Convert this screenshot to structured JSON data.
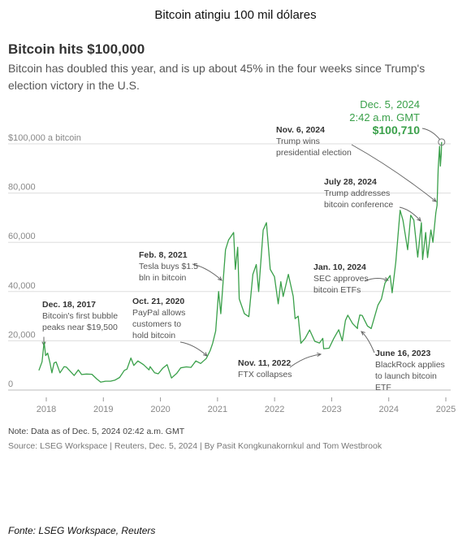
{
  "page_title": "Bitcoin atingiu 100 mil dólares",
  "footer": "Fonte: LSEG Workspace, Reuters",
  "chart_data": {
    "type": "line",
    "title": "Bitcoin hits $100,000",
    "subtitle": "Bitcoin has doubled this year, and is up about 45% in the four weeks since Trump's election victory in the U.S.",
    "note": "Note: Data as of Dec. 5, 2024 02:42 a.m. GMT",
    "source": "Source: LSEG Workspace | Reuters, Dec. 5, 2024 | By Pasit Kongkunakornkul and Tom Westbrook",
    "line_color": "#3aa04a",
    "x_ticks": [
      "2018",
      "2019",
      "2020",
      "2021",
      "2022",
      "2023",
      "2024",
      "2025"
    ],
    "y_ticks": [
      {
        "value": 0,
        "label": "0"
      },
      {
        "value": 20000,
        "label": "20,000"
      },
      {
        "value": 40000,
        "label": "40,000"
      },
      {
        "value": 60000,
        "label": "60,000"
      },
      {
        "value": 80000,
        "label": "80,000"
      },
      {
        "value": 100000,
        "label": "$100,000 a bitcoin"
      }
    ],
    "xlim": [
      "2017-11-01",
      "2025-02-01"
    ],
    "ylim": [
      0,
      100000
    ],
    "series": [
      {
        "points": [
          [
            "2017-11-15",
            8000
          ],
          [
            "2017-12-05",
            11500
          ],
          [
            "2017-12-18",
            19500
          ],
          [
            "2017-12-28",
            14000
          ],
          [
            "2018-01-10",
            15000
          ],
          [
            "2018-01-25",
            11000
          ],
          [
            "2018-02-06",
            7000
          ],
          [
            "2018-02-20",
            11000
          ],
          [
            "2018-03-05",
            11400
          ],
          [
            "2018-03-30",
            7000
          ],
          [
            "2018-04-25",
            9500
          ],
          [
            "2018-05-10",
            9300
          ],
          [
            "2018-06-28",
            5900
          ],
          [
            "2018-07-25",
            8200
          ],
          [
            "2018-08-15",
            6300
          ],
          [
            "2018-09-15",
            6500
          ],
          [
            "2018-10-20",
            6400
          ],
          [
            "2018-11-20",
            4500
          ],
          [
            "2018-12-15",
            3200
          ],
          [
            "2019-01-15",
            3600
          ],
          [
            "2019-02-15",
            3600
          ],
          [
            "2019-03-15",
            4000
          ],
          [
            "2019-04-15",
            5100
          ],
          [
            "2019-05-15",
            8000
          ],
          [
            "2019-06-01",
            8500
          ],
          [
            "2019-06-26",
            13000
          ],
          [
            "2019-07-15",
            10000
          ],
          [
            "2019-08-10",
            11800
          ],
          [
            "2019-09-15",
            10300
          ],
          [
            "2019-10-20",
            8200
          ],
          [
            "2019-10-27",
            9500
          ],
          [
            "2019-11-25",
            7000
          ],
          [
            "2019-12-18",
            6600
          ],
          [
            "2020-01-15",
            8800
          ],
          [
            "2020-02-13",
            10300
          ],
          [
            "2020-03-12",
            4900
          ],
          [
            "2020-04-15",
            6800
          ],
          [
            "2020-05-10",
            9000
          ],
          [
            "2020-06-15",
            9400
          ],
          [
            "2020-07-15",
            9200
          ],
          [
            "2020-08-15",
            11800
          ],
          [
            "2020-09-15",
            10800
          ],
          [
            "2020-10-21",
            12800
          ],
          [
            "2020-11-15",
            16000
          ],
          [
            "2020-12-01",
            19000
          ],
          [
            "2020-12-20",
            24000
          ],
          [
            "2021-01-08",
            40000
          ],
          [
            "2021-01-22",
            31000
          ],
          [
            "2021-02-08",
            46000
          ],
          [
            "2021-02-21",
            57000
          ],
          [
            "2021-03-13",
            61000
          ],
          [
            "2021-04-14",
            64000
          ],
          [
            "2021-04-25",
            49000
          ],
          [
            "2021-05-10",
            58000
          ],
          [
            "2021-05-20",
            37000
          ],
          [
            "2021-06-22",
            31000
          ],
          [
            "2021-07-20",
            29800
          ],
          [
            "2021-08-15",
            47000
          ],
          [
            "2021-09-06",
            51000
          ],
          [
            "2021-09-21",
            40000
          ],
          [
            "2021-10-20",
            65000
          ],
          [
            "2021-11-10",
            68000
          ],
          [
            "2021-12-04",
            49000
          ],
          [
            "2021-12-31",
            46000
          ],
          [
            "2022-01-24",
            35000
          ],
          [
            "2022-02-10",
            44000
          ],
          [
            "2022-02-25",
            38000
          ],
          [
            "2022-03-30",
            47000
          ],
          [
            "2022-04-30",
            38000
          ],
          [
            "2022-05-12",
            29000
          ],
          [
            "2022-06-01",
            30000
          ],
          [
            "2022-06-18",
            19000
          ],
          [
            "2022-07-15",
            21000
          ],
          [
            "2022-08-13",
            24400
          ],
          [
            "2022-09-15",
            19800
          ],
          [
            "2022-10-15",
            19100
          ],
          [
            "2022-11-05",
            21000
          ],
          [
            "2022-11-11",
            16800
          ],
          [
            "2022-12-15",
            17000
          ],
          [
            "2023-01-14",
            20900
          ],
          [
            "2023-02-15",
            24500
          ],
          [
            "2023-03-10",
            20000
          ],
          [
            "2023-03-30",
            28300
          ],
          [
            "2023-04-14",
            30400
          ],
          [
            "2023-05-15",
            27000
          ],
          [
            "2023-06-15",
            25000
          ],
          [
            "2023-06-16",
            26300
          ],
          [
            "2023-06-30",
            30500
          ],
          [
            "2023-07-15",
            30300
          ],
          [
            "2023-08-18",
            26000
          ],
          [
            "2023-09-11",
            25000
          ],
          [
            "2023-10-24",
            34500
          ],
          [
            "2023-11-15",
            37000
          ],
          [
            "2023-12-08",
            43500
          ],
          [
            "2024-01-10",
            46500
          ],
          [
            "2024-01-23",
            39500
          ],
          [
            "2024-02-15",
            52000
          ],
          [
            "2024-03-14",
            73000
          ],
          [
            "2024-04-01",
            69000
          ],
          [
            "2024-05-01",
            57000
          ],
          [
            "2024-05-21",
            71000
          ],
          [
            "2024-06-10",
            69000
          ],
          [
            "2024-07-05",
            54000
          ],
          [
            "2024-07-28",
            68000
          ],
          [
            "2024-08-05",
            53000
          ],
          [
            "2024-08-25",
            64000
          ],
          [
            "2024-09-06",
            53800
          ],
          [
            "2024-09-27",
            65000
          ],
          [
            "2024-10-10",
            60000
          ],
          [
            "2024-10-29",
            72000
          ],
          [
            "2024-11-06",
            75000
          ],
          [
            "2024-11-13",
            90000
          ],
          [
            "2024-11-22",
            99000
          ],
          [
            "2024-11-27",
            91000
          ],
          [
            "2024-12-03",
            96000
          ],
          [
            "2024-12-05",
            100710
          ]
        ]
      }
    ],
    "annotations": [
      {
        "title": "Dec. 18, 2017",
        "lines": [
          "Bitcoin's first bubble",
          "peaks near $19,500"
        ]
      },
      {
        "title": "Feb. 8, 2021",
        "lines": [
          "Tesla buys $1.5",
          "bln in bitcoin"
        ]
      },
      {
        "title": "Oct. 21, 2020",
        "lines": [
          "PayPal allows",
          "customers to",
          "hold bitcoin"
        ]
      },
      {
        "title": "Nov. 11, 2022",
        "lines": [
          "FTX collapses"
        ]
      },
      {
        "title": "Jan. 10, 2024",
        "lines": [
          "SEC approves",
          "bitcoin ETFs"
        ]
      },
      {
        "title": "June 16, 2023",
        "lines": [
          "BlackRock applies",
          "to launch bitcoin",
          "ETF"
        ]
      },
      {
        "title": "July 28, 2024",
        "lines": [
          "Trump addresses",
          "bitcoin conference"
        ]
      },
      {
        "title": "Nov. 6, 2024",
        "lines": [
          "Trump wins",
          "presidential election"
        ]
      }
    ],
    "callout": {
      "date": "Dec. 5, 2024",
      "time": "2:42 a.m. GMT",
      "value": "$100,710"
    }
  }
}
